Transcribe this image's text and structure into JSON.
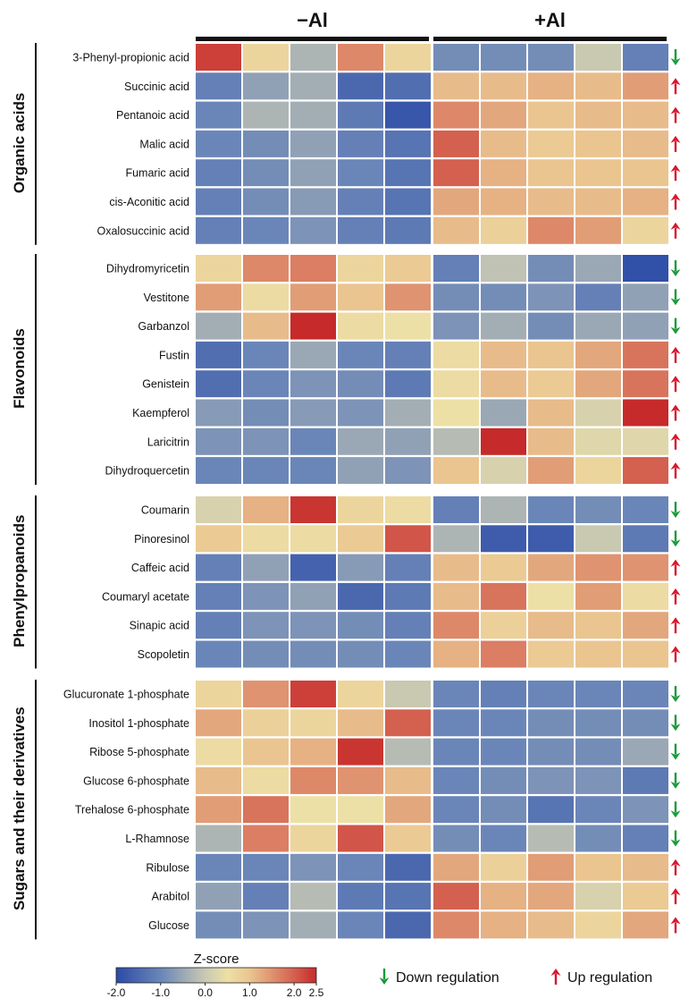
{
  "chart_data": {
    "type": "heatmap",
    "conditions": [
      {
        "label": "−Al",
        "columns": 5
      },
      {
        "label": "+Al",
        "columns": 5
      }
    ],
    "groups": [
      {
        "label": "Organic acids",
        "rows": [
          {
            "name": "3-Phenyl-propionic acid",
            "regulation": "down",
            "values": [
              2.3,
              0.7,
              -0.3,
              1.6,
              0.7,
              -0.9,
              -0.9,
              -0.9,
              0.0,
              -1.1
            ]
          },
          {
            "name": "Succinic acid",
            "regulation": "up",
            "values": [
              -1.1,
              -0.6,
              -0.4,
              -1.5,
              -1.4,
              1.1,
              1.1,
              1.2,
              1.1,
              1.4
            ]
          },
          {
            "name": "Pentanoic acid",
            "regulation": "up",
            "values": [
              -1.0,
              -0.3,
              -0.4,
              -1.2,
              -1.8,
              1.6,
              1.3,
              1.0,
              1.1,
              1.1
            ]
          },
          {
            "name": "Malic acid",
            "regulation": "up",
            "values": [
              -1.0,
              -0.9,
              -0.6,
              -1.1,
              -1.3,
              2.0,
              1.1,
              0.9,
              1.0,
              1.1
            ]
          },
          {
            "name": "Fumaric acid",
            "regulation": "up",
            "values": [
              -1.1,
              -0.9,
              -0.6,
              -1.0,
              -1.3,
              2.0,
              1.2,
              1.0,
              1.0,
              1.0
            ]
          },
          {
            "name": "cis-Aconitic acid",
            "regulation": "up",
            "values": [
              -1.1,
              -0.9,
              -0.7,
              -1.1,
              -1.3,
              1.3,
              1.2,
              1.1,
              1.1,
              1.2
            ]
          },
          {
            "name": "Oxalosuccinic acid",
            "regulation": "up",
            "values": [
              -1.1,
              -1.0,
              -0.8,
              -1.1,
              -1.2,
              1.1,
              0.8,
              1.6,
              1.4,
              0.7
            ]
          }
        ]
      },
      {
        "label": "Flavonoids",
        "rows": [
          {
            "name": "Dihydromyricetin",
            "regulation": "down",
            "values": [
              0.7,
              1.6,
              1.7,
              0.7,
              0.9,
              -1.1,
              -0.1,
              -0.9,
              -0.5,
              -1.9
            ]
          },
          {
            "name": "Vestitone",
            "regulation": "down",
            "values": [
              1.4,
              0.6,
              1.4,
              1.0,
              1.5,
              -0.9,
              -0.9,
              -0.8,
              -1.1,
              -0.6
            ]
          },
          {
            "name": "Garbanzol",
            "regulation": "down",
            "values": [
              -0.4,
              1.1,
              2.5,
              0.6,
              0.5,
              -0.8,
              -0.4,
              -0.9,
              -0.5,
              -0.6
            ]
          },
          {
            "name": "Fustin",
            "regulation": "up",
            "values": [
              -1.4,
              -1.0,
              -0.5,
              -1.0,
              -1.1,
              0.6,
              1.1,
              1.0,
              1.3,
              1.8
            ]
          },
          {
            "name": "Genistein",
            "regulation": "up",
            "values": [
              -1.4,
              -1.0,
              -0.8,
              -0.9,
              -1.2,
              0.6,
              1.1,
              0.9,
              1.3,
              1.8
            ]
          },
          {
            "name": "Kaempferol",
            "regulation": "up",
            "values": [
              -0.7,
              -0.9,
              -0.7,
              -0.8,
              -0.4,
              0.5,
              -0.5,
              1.1,
              0.2,
              2.5
            ]
          },
          {
            "name": "Laricitrin",
            "regulation": "up",
            "values": [
              -0.8,
              -0.8,
              -1.0,
              -0.5,
              -0.6,
              -0.2,
              2.5,
              1.1,
              0.3,
              0.3
            ]
          },
          {
            "name": "Dihydroquercetin",
            "regulation": "up",
            "values": [
              -1.0,
              -1.0,
              -1.0,
              -0.6,
              -0.8,
              1.0,
              0.2,
              1.4,
              0.7,
              2.0
            ]
          }
        ]
      },
      {
        "label": "Phenylpropanoids",
        "rows": [
          {
            "name": "Coumarin",
            "regulation": "down",
            "values": [
              0.2,
              1.2,
              2.4,
              0.7,
              0.6,
              -1.1,
              -0.3,
              -1.0,
              -0.9,
              -1.0
            ]
          },
          {
            "name": "Pinoresinol",
            "regulation": "down",
            "values": [
              0.9,
              0.6,
              0.6,
              0.9,
              2.1,
              -0.3,
              -1.7,
              -1.7,
              0.0,
              -1.2
            ]
          },
          {
            "name": "Caffeic acid",
            "regulation": "up",
            "values": [
              -1.1,
              -0.6,
              -1.6,
              -0.7,
              -1.1,
              1.1,
              0.9,
              1.3,
              1.5,
              1.5
            ]
          },
          {
            "name": "Coumaryl acetate",
            "regulation": "up",
            "values": [
              -1.1,
              -0.8,
              -0.6,
              -1.5,
              -1.2,
              1.1,
              1.8,
              0.5,
              1.4,
              0.6
            ]
          },
          {
            "name": "Sinapic acid",
            "regulation": "up",
            "values": [
              -1.1,
              -0.8,
              -0.8,
              -0.9,
              -1.1,
              1.6,
              0.8,
              1.1,
              1.0,
              1.3
            ]
          },
          {
            "name": "Scopoletin",
            "regulation": "up",
            "values": [
              -1.0,
              -0.9,
              -0.9,
              -0.9,
              -1.0,
              1.2,
              1.7,
              0.9,
              1.0,
              1.0
            ]
          }
        ]
      },
      {
        "label": "Sugars and their derivatives",
        "rows": [
          {
            "name": "Glucuronate 1-phosphate",
            "regulation": "down",
            "values": [
              0.7,
              1.5,
              2.3,
              0.7,
              0.0,
              -1.0,
              -1.1,
              -1.0,
              -1.0,
              -1.0
            ]
          },
          {
            "name": "Inositol 1-phosphate",
            "regulation": "down",
            "values": [
              1.3,
              0.8,
              0.7,
              1.1,
              2.0,
              -1.0,
              -1.0,
              -0.9,
              -0.9,
              -0.9
            ]
          },
          {
            "name": "Ribose 5-phosphate",
            "regulation": "down",
            "values": [
              0.6,
              1.0,
              1.2,
              2.4,
              -0.2,
              -1.0,
              -1.0,
              -0.9,
              -0.9,
              -0.5
            ]
          },
          {
            "name": "Glucose 6-phosphate",
            "regulation": "down",
            "values": [
              1.1,
              0.6,
              1.6,
              1.5,
              1.1,
              -1.0,
              -0.9,
              -0.8,
              -0.8,
              -1.2
            ]
          },
          {
            "name": "Trehalose 6-phosphate",
            "regulation": "down",
            "values": [
              1.4,
              1.8,
              0.5,
              0.5,
              1.3,
              -1.0,
              -0.9,
              -1.3,
              -1.0,
              -0.8
            ]
          },
          {
            "name": "L-Rhamnose",
            "regulation": "down",
            "values": [
              -0.3,
              1.7,
              0.7,
              2.1,
              0.9,
              -0.9,
              -1.0,
              -0.2,
              -0.9,
              -1.1
            ]
          },
          {
            "name": "Ribulose",
            "regulation": "up",
            "values": [
              -1.0,
              -1.0,
              -0.8,
              -1.0,
              -1.5,
              1.3,
              0.8,
              1.4,
              1.0,
              1.1
            ]
          },
          {
            "name": "Arabitol",
            "regulation": "up",
            "values": [
              -0.6,
              -1.1,
              -0.2,
              -1.2,
              -1.3,
              2.0,
              1.2,
              1.3,
              0.2,
              0.9
            ]
          },
          {
            "name": "Glucose",
            "regulation": "up",
            "values": [
              -0.9,
              -0.8,
              -0.4,
              -1.0,
              -1.5,
              1.6,
              1.2,
              1.1,
              0.7,
              1.3
            ]
          }
        ]
      }
    ],
    "color_scale": {
      "title": "Z-score",
      "min": -2.0,
      "max": 2.5,
      "ticks": [
        "-2.0",
        "-1.0",
        "0.0",
        "1.0",
        "2.0",
        "2.5"
      ],
      "tick_values": [
        -2.0,
        -1.0,
        0.0,
        1.0,
        2.0,
        2.5
      ],
      "stops": [
        {
          "value": -2.0,
          "color": "#2b4aa6"
        },
        {
          "value": -1.0,
          "color": "#6a86b8"
        },
        {
          "value": 0.0,
          "color": "#c9c9b2"
        },
        {
          "value": 0.5,
          "color": "#ede0a6"
        },
        {
          "value": 1.0,
          "color": "#eac590"
        },
        {
          "value": 2.0,
          "color": "#d4604f"
        },
        {
          "value": 2.5,
          "color": "#c62a2a"
        }
      ]
    },
    "legend": {
      "down_label": "Down regulation",
      "up_label": "Up regulation",
      "down_color": "#1a9a3a",
      "up_color": "#d8162a"
    }
  }
}
